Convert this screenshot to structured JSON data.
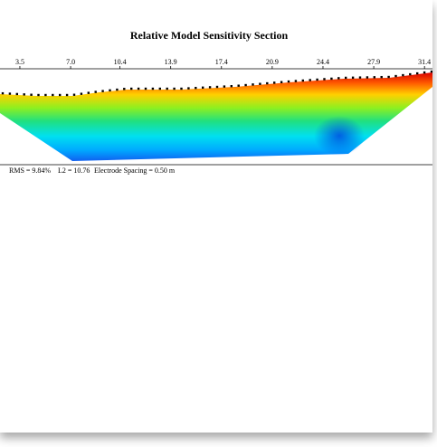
{
  "chart_data": {
    "type": "section",
    "title": "Relative Model Sensitivity Section",
    "xlim": [
      2.13,
      31.95
    ],
    "xticks": [
      {
        "value": 3.5,
        "label": "3.5"
      },
      {
        "value": 7,
        "label": "7.0"
      },
      {
        "value": 10.4,
        "label": "10.4"
      },
      {
        "value": 13.9,
        "label": "13.9"
      },
      {
        "value": 17.4,
        "label": "17.4"
      },
      {
        "value": 20.9,
        "label": "20.9"
      },
      {
        "value": 24.4,
        "label": "24.4"
      },
      {
        "value": 27.9,
        "label": "27.9"
      },
      {
        "value": 31.4,
        "label": "31.4"
      }
    ],
    "annotations": [
      "RMS = 9.84%",
      "L2 = 10.76",
      "Electrode Spacing = 0.50 m"
    ]
  }
}
